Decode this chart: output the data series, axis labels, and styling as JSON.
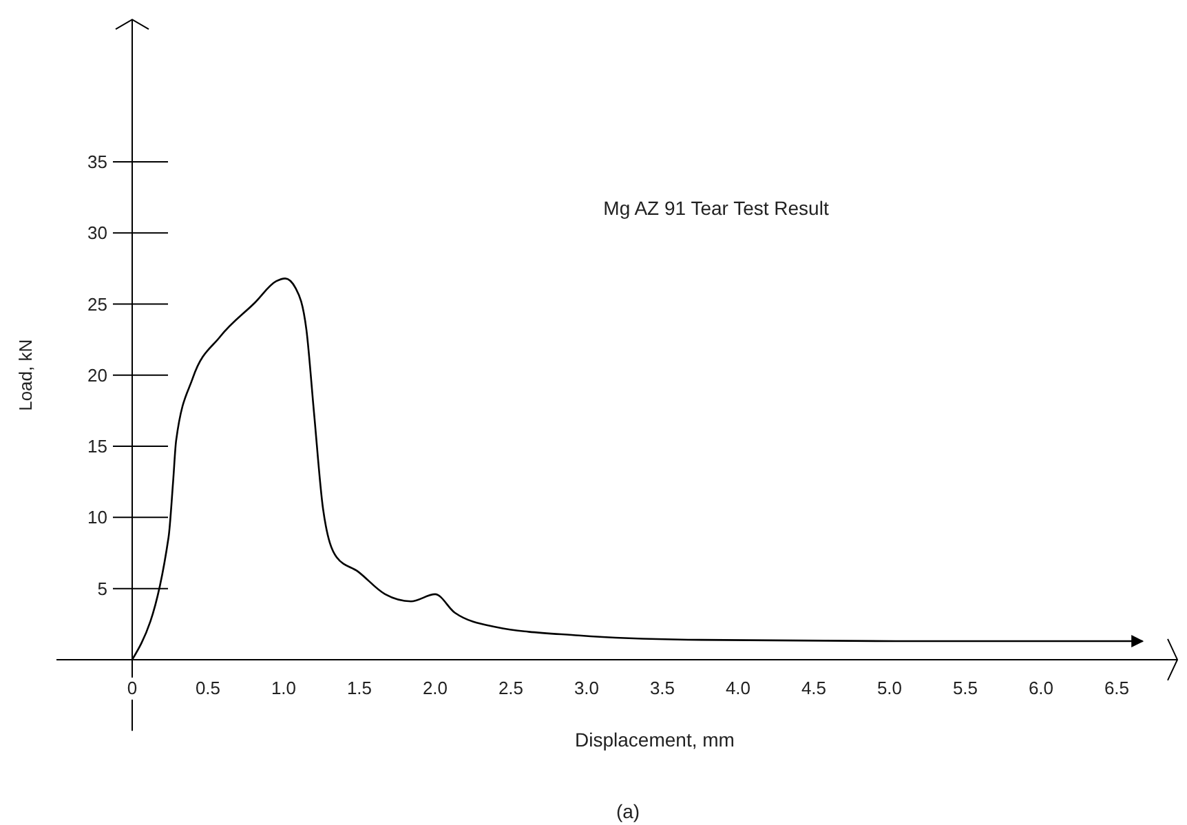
{
  "chart_data": {
    "type": "line",
    "title": "Mg AZ 91 Tear Test Result",
    "xlabel": "Displacement, mm",
    "ylabel": "Load, kN",
    "annotations": [
      "(a)"
    ],
    "x": [
      0,
      0.24,
      0.27,
      0.29,
      0.4,
      0.58,
      0.81,
      0.95,
      1.01,
      1.08,
      1.15,
      1.2,
      1.26,
      1.35,
      1.49,
      1.67,
      1.84,
      2.0,
      2.13,
      2.4,
      2.95,
      3.67,
      5.04,
      6.67
    ],
    "series": [
      {
        "color": "#000000",
        "values": [
          0,
          8.6,
          12.5,
          15.4,
          19.8,
          22.7,
          25.1,
          26.6,
          26.8,
          26.1,
          23.2,
          17.4,
          10.6,
          7.2,
          6.2,
          4.6,
          4.1,
          4.6,
          3.3,
          2.3,
          1.7,
          1.4,
          1.3,
          1.3
        ]
      }
    ],
    "xlim": [
      -0.5,
      6.9
    ],
    "ylim": [
      -5,
      45
    ],
    "xticks": [
      0,
      {
        "value": 0.5,
        "label": "0.5"
      },
      {
        "value": 1,
        "label": "1.0"
      },
      {
        "value": 1.5,
        "label": "1.5"
      },
      {
        "value": 2,
        "label": "2.0"
      },
      {
        "value": 2.5,
        "label": "2.5"
      },
      {
        "value": 3,
        "label": "3.0"
      },
      {
        "value": 3.5,
        "label": "3.5"
      },
      {
        "value": 4,
        "label": "4.0"
      },
      {
        "value": 4.5,
        "label": "4.5"
      },
      {
        "value": 5,
        "label": "5.0"
      },
      {
        "value": 5.5,
        "label": "5.5"
      },
      {
        "value": 6,
        "label": "6.0"
      },
      {
        "value": 6.5,
        "label": "6.5"
      }
    ],
    "yticks": [
      5,
      10,
      15,
      20,
      25,
      30,
      35
    ],
    "grid": false,
    "marker": "none",
    "line_style": "solid"
  }
}
